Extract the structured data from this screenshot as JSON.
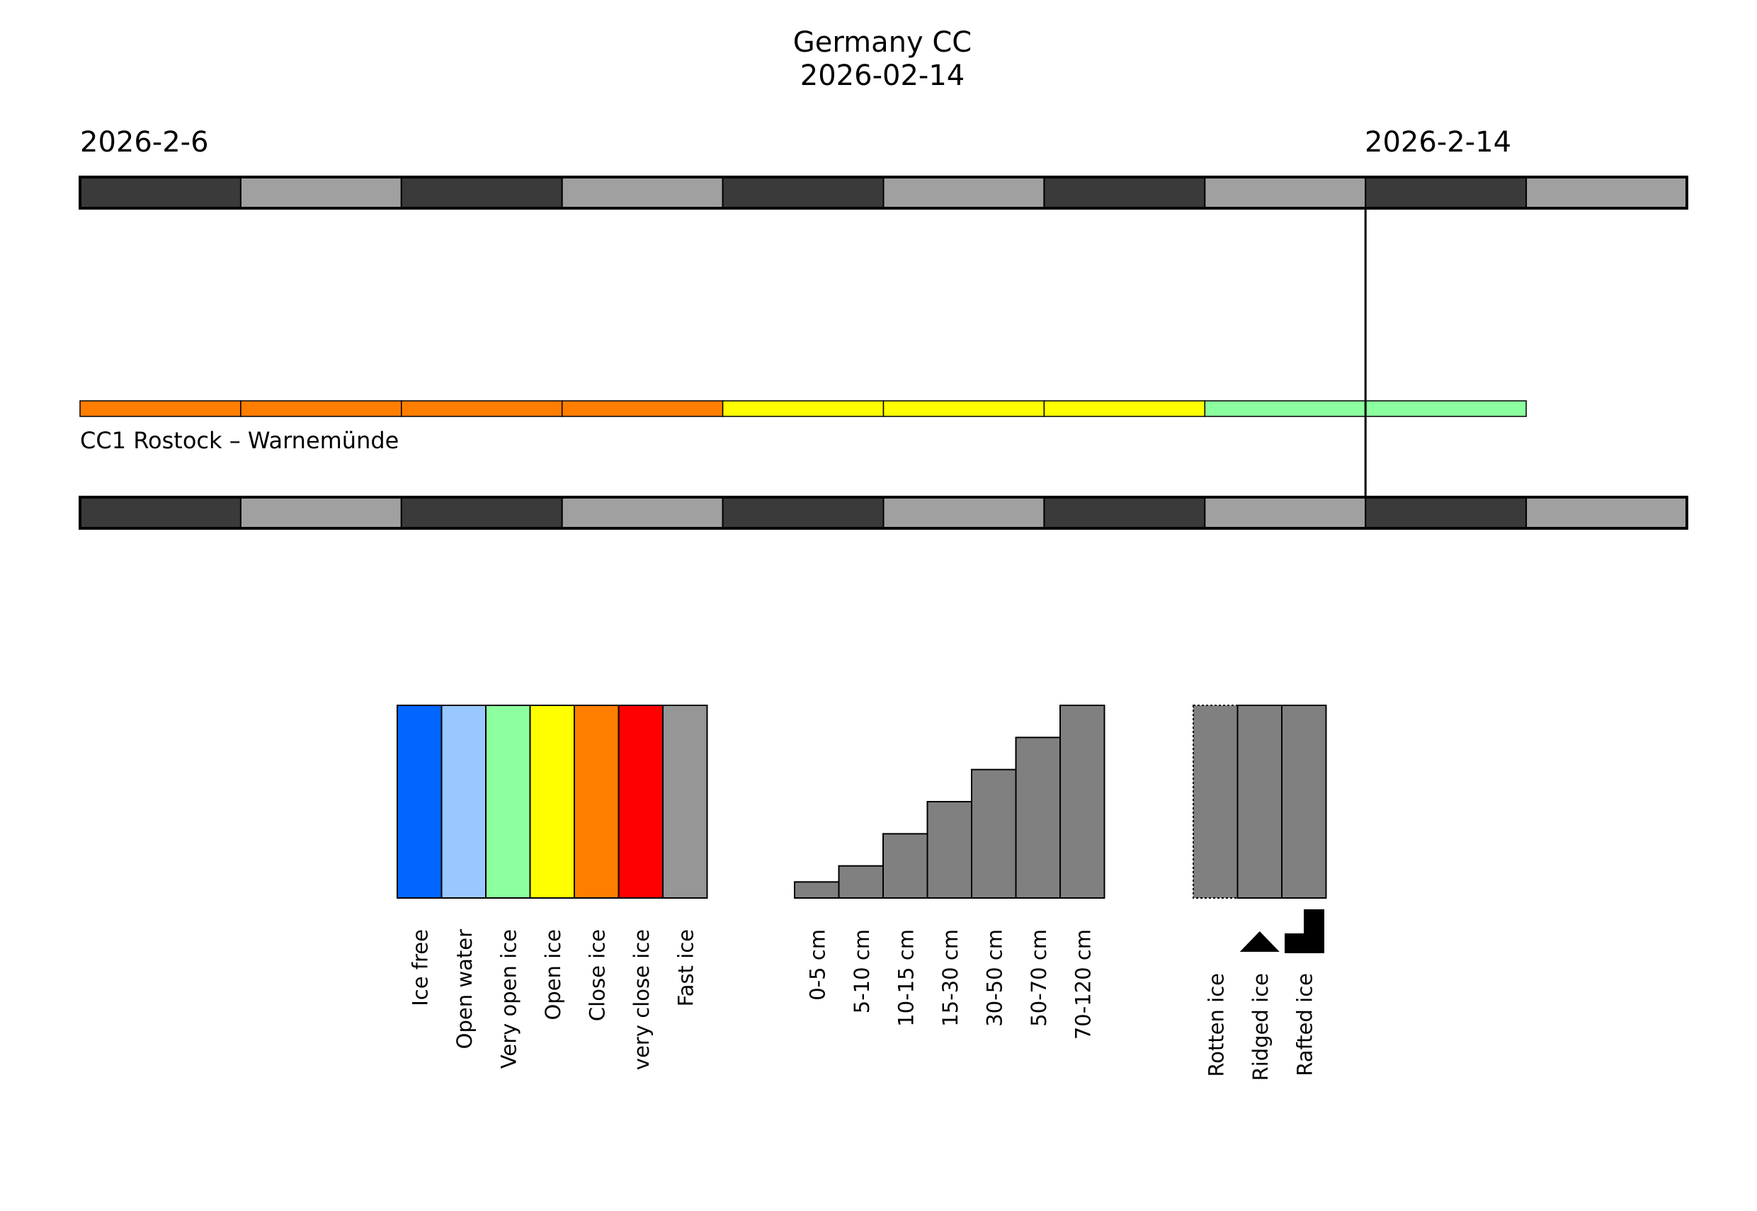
{
  "title": "Germany CC",
  "subtitle": "2026-02-14",
  "date_labels": {
    "start": "2026-2-6",
    "current": "2026-2-14"
  },
  "colors": {
    "day_dark": "#3a3a3a",
    "day_light": "#a0a0a0",
    "ice_free": "#0066ff",
    "open_water": "#99c7ff",
    "very_open_ice": "#8cff9f",
    "open_ice": "#ffff00",
    "close_ice": "#ff7e00",
    "very_close_ice": "#ff0000",
    "fast_ice": "#969696",
    "thickness_gray": "#808080"
  },
  "chart_data": {
    "type": "timeline",
    "days": 10,
    "start_date": "2026-2-6",
    "current_day_index": 8,
    "stations": [
      {
        "name": "CC1 Rostock – Warnemünde",
        "daily_concentration": [
          "Close ice",
          "Close ice",
          "Close ice",
          "Close ice",
          "Open ice",
          "Open ice",
          "Open ice",
          "Very open ice",
          "Very open ice",
          null
        ]
      }
    ],
    "legend_concentration": [
      {
        "label": "Ice free",
        "color_key": "ice_free"
      },
      {
        "label": "Open water",
        "color_key": "open_water"
      },
      {
        "label": "Very open ice",
        "color_key": "very_open_ice"
      },
      {
        "label": "Open ice",
        "color_key": "open_ice"
      },
      {
        "label": "Close ice",
        "color_key": "close_ice"
      },
      {
        "label": "very close ice",
        "color_key": "very_close_ice"
      },
      {
        "label": "Fast ice",
        "color_key": "fast_ice"
      }
    ],
    "legend_thickness": [
      {
        "label": "0-5 cm",
        "level": 1
      },
      {
        "label": "5-10 cm",
        "level": 2
      },
      {
        "label": "10-15 cm",
        "level": 4
      },
      {
        "label": "15-30 cm",
        "level": 6
      },
      {
        "label": "30-50 cm",
        "level": 8
      },
      {
        "label": "50-70 cm",
        "level": 10
      },
      {
        "label": "70-120 cm",
        "level": 12
      }
    ],
    "thickness_max_level": 12,
    "legend_features": [
      {
        "label": "Rotten ice",
        "symbol": "dotted-border"
      },
      {
        "label": "Ridged ice",
        "symbol": "ridge-triangle"
      },
      {
        "label": "Rafted ice",
        "symbol": "raft-step"
      }
    ]
  }
}
